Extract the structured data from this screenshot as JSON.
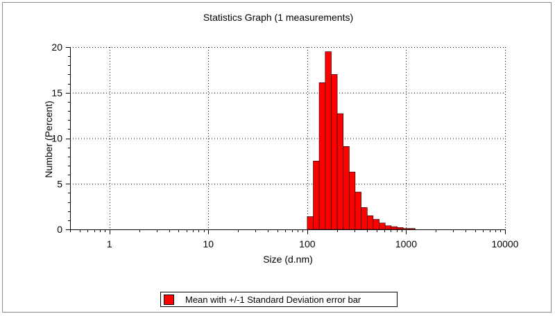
{
  "chart_data": {
    "type": "bar",
    "title": "Statistics Graph (1 measurements)",
    "xlabel": "Size (d.nm)",
    "ylabel": "Number (Percent)",
    "x_scale": "log",
    "xlim": [
      0.4,
      10000
    ],
    "ylim": [
      0,
      20
    ],
    "x_ticks": [
      1,
      10,
      100,
      1000,
      10000
    ],
    "x_tick_labels": [
      "1",
      "10",
      "100",
      "1000",
      "10000"
    ],
    "y_ticks": [
      0,
      5,
      10,
      15,
      20
    ],
    "y_tick_labels": [
      "0",
      "5",
      "10",
      "15",
      "20"
    ],
    "grid": true,
    "legend_position": "bottom",
    "bar_color": "#ff0000",
    "series": [
      {
        "name": "Mean with +/-1 Standard Deviation error bar",
        "bins": [
          {
            "x0": 100,
            "x1": 115,
            "y": 1.4
          },
          {
            "x0": 115,
            "x1": 132,
            "y": 7.5
          },
          {
            "x0": 132,
            "x1": 152,
            "y": 16.1
          },
          {
            "x0": 152,
            "x1": 175,
            "y": 19.5
          },
          {
            "x0": 175,
            "x1": 201,
            "y": 17.0
          },
          {
            "x0": 201,
            "x1": 231,
            "y": 12.7
          },
          {
            "x0": 231,
            "x1": 266,
            "y": 9.1
          },
          {
            "x0": 266,
            "x1": 305,
            "y": 6.3
          },
          {
            "x0": 305,
            "x1": 351,
            "y": 4.1
          },
          {
            "x0": 351,
            "x1": 404,
            "y": 2.4
          },
          {
            "x0": 404,
            "x1": 464,
            "y": 1.5
          },
          {
            "x0": 464,
            "x1": 534,
            "y": 1.1
          },
          {
            "x0": 534,
            "x1": 614,
            "y": 0.7
          },
          {
            "x0": 614,
            "x1": 706,
            "y": 0.4
          },
          {
            "x0": 706,
            "x1": 812,
            "y": 0.3
          },
          {
            "x0": 812,
            "x1": 934,
            "y": 0.2
          },
          {
            "x0": 934,
            "x1": 1074,
            "y": 0.1
          },
          {
            "x0": 1074,
            "x1": 1235,
            "y": 0.1
          }
        ]
      }
    ]
  }
}
